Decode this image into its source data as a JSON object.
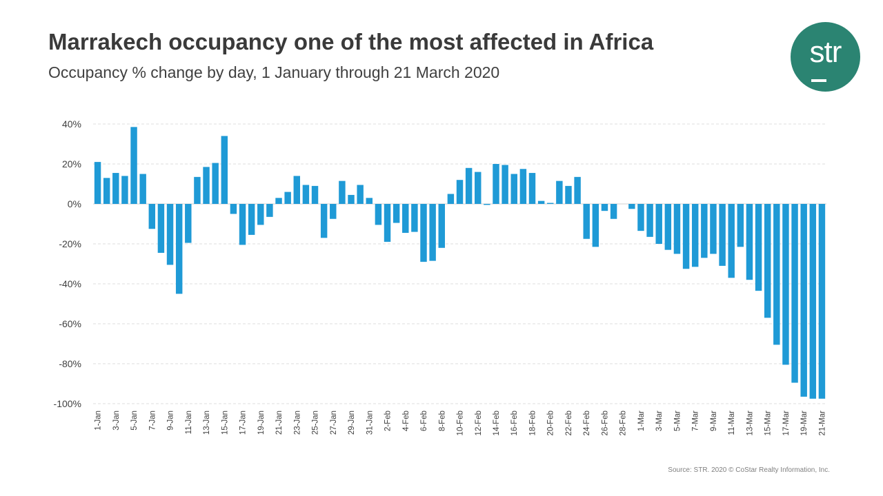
{
  "chart_data": {
    "type": "bar",
    "title": "Marrakech occupancy one of the most affected in Africa",
    "subtitle": "Occupancy % change by day, 1 January through 21 March 2020",
    "ylim": [
      -100,
      40
    ],
    "yticks": [
      40,
      20,
      0,
      -20,
      -40,
      -60,
      -80,
      -100
    ],
    "ytick_labels": [
      "40%",
      "20%",
      "0%",
      "-20%",
      "-40%",
      "-60%",
      "-80%",
      "-100%"
    ],
    "bar_color": "#1f9ad6",
    "categories": [
      "1-Jan",
      "2-Jan",
      "3-Jan",
      "4-Jan",
      "5-Jan",
      "6-Jan",
      "7-Jan",
      "8-Jan",
      "9-Jan",
      "10-Jan",
      "11-Jan",
      "12-Jan",
      "13-Jan",
      "14-Jan",
      "15-Jan",
      "16-Jan",
      "17-Jan",
      "18-Jan",
      "19-Jan",
      "20-Jan",
      "21-Jan",
      "22-Jan",
      "23-Jan",
      "24-Jan",
      "25-Jan",
      "26-Jan",
      "27-Jan",
      "28-Jan",
      "29-Jan",
      "30-Jan",
      "31-Jan",
      "1-Feb",
      "2-Feb",
      "3-Feb",
      "4-Feb",
      "5-Feb",
      "6-Feb",
      "7-Feb",
      "8-Feb",
      "9-Feb",
      "10-Feb",
      "11-Feb",
      "12-Feb",
      "13-Feb",
      "14-Feb",
      "15-Feb",
      "16-Feb",
      "17-Feb",
      "18-Feb",
      "19-Feb",
      "20-Feb",
      "21-Feb",
      "22-Feb",
      "23-Feb",
      "24-Feb",
      "25-Feb",
      "26-Feb",
      "27-Feb",
      "28-Feb",
      "29-Feb",
      "1-Mar",
      "2-Mar",
      "3-Mar",
      "4-Mar",
      "5-Mar",
      "6-Mar",
      "7-Mar",
      "8-Mar",
      "9-Mar",
      "10-Mar",
      "11-Mar",
      "12-Mar",
      "13-Mar",
      "14-Mar",
      "15-Mar",
      "16-Mar",
      "17-Mar",
      "18-Mar",
      "19-Mar",
      "20-Mar",
      "21-Mar"
    ],
    "x_tick_labels": [
      "1-Jan",
      "3-Jan",
      "5-Jan",
      "7-Jan",
      "9-Jan",
      "11-Jan",
      "13-Jan",
      "15-Jan",
      "17-Jan",
      "19-Jan",
      "21-Jan",
      "23-Jan",
      "25-Jan",
      "27-Jan",
      "29-Jan",
      "31-Jan",
      "2-Feb",
      "4-Feb",
      "6-Feb",
      "8-Feb",
      "10-Feb",
      "12-Feb",
      "14-Feb",
      "16-Feb",
      "18-Feb",
      "20-Feb",
      "22-Feb",
      "24-Feb",
      "26-Feb",
      "28-Feb",
      "1-Mar",
      "3-Mar",
      "5-Mar",
      "7-Mar",
      "9-Mar",
      "11-Mar",
      "13-Mar",
      "15-Mar",
      "17-Mar",
      "19-Mar",
      "21-Mar"
    ],
    "values": [
      21,
      13,
      15.5,
      14,
      38.5,
      15,
      -12.5,
      -24.5,
      -30.5,
      -45,
      -19.5,
      13.5,
      18.5,
      20.5,
      34,
      -5,
      -20.5,
      -15.5,
      -10.5,
      -6.5,
      3,
      6,
      14,
      9.5,
      9,
      -17,
      -7.5,
      11.5,
      4.5,
      9.5,
      3,
      -10.5,
      -19,
      -9.5,
      -14.5,
      -14,
      -29,
      -28.5,
      -22,
      5,
      12,
      18,
      16,
      -0.5,
      20,
      19.5,
      15,
      17.5,
      15.5,
      1.5,
      0.5,
      11.5,
      9,
      13.5,
      -17.5,
      -21.5,
      -3.5,
      -7.5,
      0,
      -2.5,
      -13.5,
      -16.5,
      -20,
      -23,
      -25,
      -32.5,
      -31.5,
      -27,
      -25,
      -31,
      -37,
      -21.5,
      -38,
      -43.5,
      -57,
      -70.5,
      -80.5,
      -89.5,
      -96.5,
      -97.5,
      -97.5
    ],
    "xlabel": "",
    "ylabel": "",
    "grid": "horizontal dashed"
  },
  "logo": {
    "text": "str",
    "color": "#2b8472"
  },
  "source": "Source: STR. 2020 © CoStar Realty Information, Inc."
}
